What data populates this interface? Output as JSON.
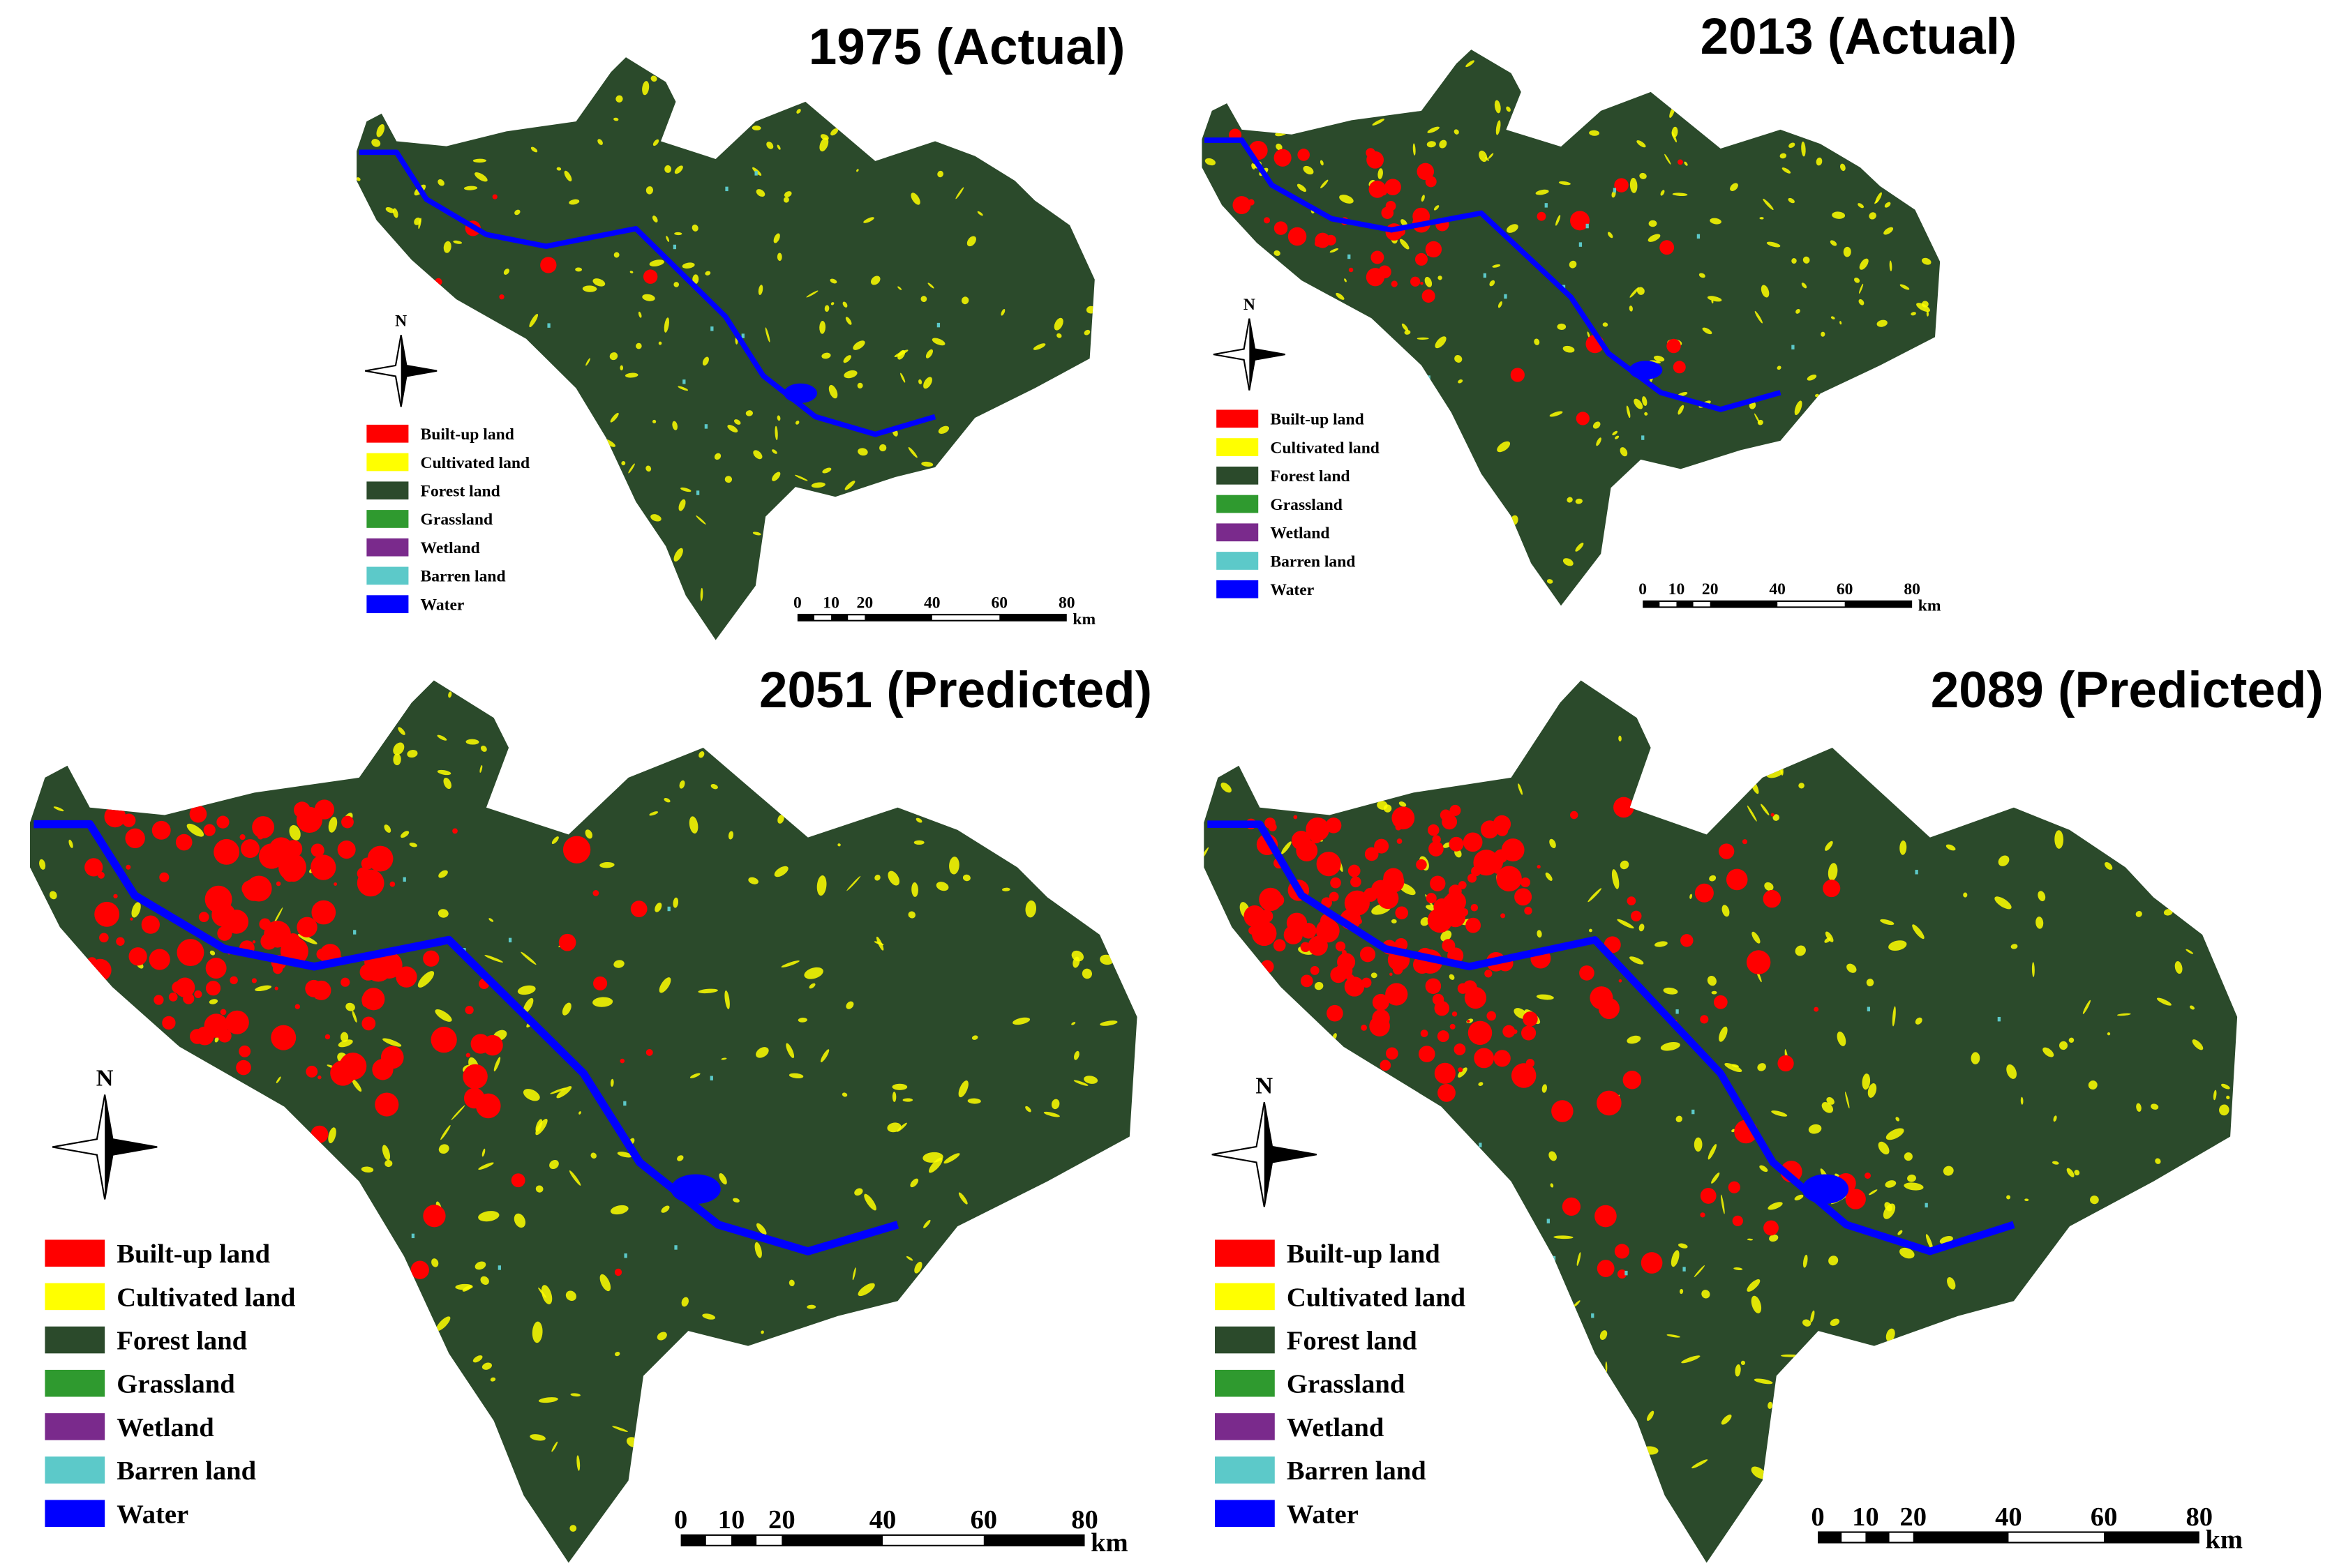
{
  "panels": [
    {
      "title": "1975 (Actual)",
      "north": "N",
      "legend": [
        {
          "label": "Built-up land",
          "color": "#ff0000"
        },
        {
          "label": "Cultivated land",
          "color": "#ffff00"
        },
        {
          "label": "Forest land",
          "color": "#2b4a2b"
        },
        {
          "label": "Grassland",
          "color": "#2f9a2f"
        },
        {
          "label": "Wetland",
          "color": "#7a2a8c"
        },
        {
          "label": "Barren land",
          "color": "#5cc9c9"
        },
        {
          "label": "Water",
          "color": "#0000ff"
        }
      ],
      "scale_bar": {
        "ticks": [
          0,
          10,
          20,
          40,
          60,
          80
        ],
        "unit": "km"
      }
    },
    {
      "title": "2013 (Actual)",
      "north": "N",
      "legend": [
        {
          "label": "Built-up land",
          "color": "#ff0000"
        },
        {
          "label": "Cultivated land",
          "color": "#ffff00"
        },
        {
          "label": "Forest land",
          "color": "#2b4a2b"
        },
        {
          "label": "Grassland",
          "color": "#2f9a2f"
        },
        {
          "label": "Wetland",
          "color": "#7a2a8c"
        },
        {
          "label": "Barren land",
          "color": "#5cc9c9"
        },
        {
          "label": "Water",
          "color": "#0000ff"
        }
      ],
      "scale_bar": {
        "ticks": [
          0,
          10,
          20,
          40,
          60,
          80
        ],
        "unit": "km"
      }
    },
    {
      "title": "2051 (Predicted)",
      "north": "N",
      "legend": [
        {
          "label": "Built-up land",
          "color": "#ff0000"
        },
        {
          "label": "Cultivated land",
          "color": "#ffff00"
        },
        {
          "label": "Forest land",
          "color": "#2b4a2b"
        },
        {
          "label": "Grassland",
          "color": "#2f9a2f"
        },
        {
          "label": "Wetland",
          "color": "#7a2a8c"
        },
        {
          "label": "Barren land",
          "color": "#5cc9c9"
        },
        {
          "label": "Water",
          "color": "#0000ff"
        }
      ],
      "scale_bar": {
        "ticks": [
          0,
          10,
          20,
          40,
          60,
          80
        ],
        "unit": "km"
      }
    },
    {
      "title": "2089 (Predicted)",
      "north": "N",
      "legend": [
        {
          "label": "Built-up land",
          "color": "#ff0000"
        },
        {
          "label": "Cultivated land",
          "color": "#ffff00"
        },
        {
          "label": "Forest land",
          "color": "#2b4a2b"
        },
        {
          "label": "Grassland",
          "color": "#2f9a2f"
        },
        {
          "label": "Wetland",
          "color": "#7a2a8c"
        },
        {
          "label": "Barren land",
          "color": "#5cc9c9"
        },
        {
          "label": "Water",
          "color": "#0000ff"
        }
      ],
      "scale_bar": {
        "ticks": [
          0,
          10,
          20,
          40,
          60,
          80
        ],
        "unit": "km"
      }
    }
  ]
}
